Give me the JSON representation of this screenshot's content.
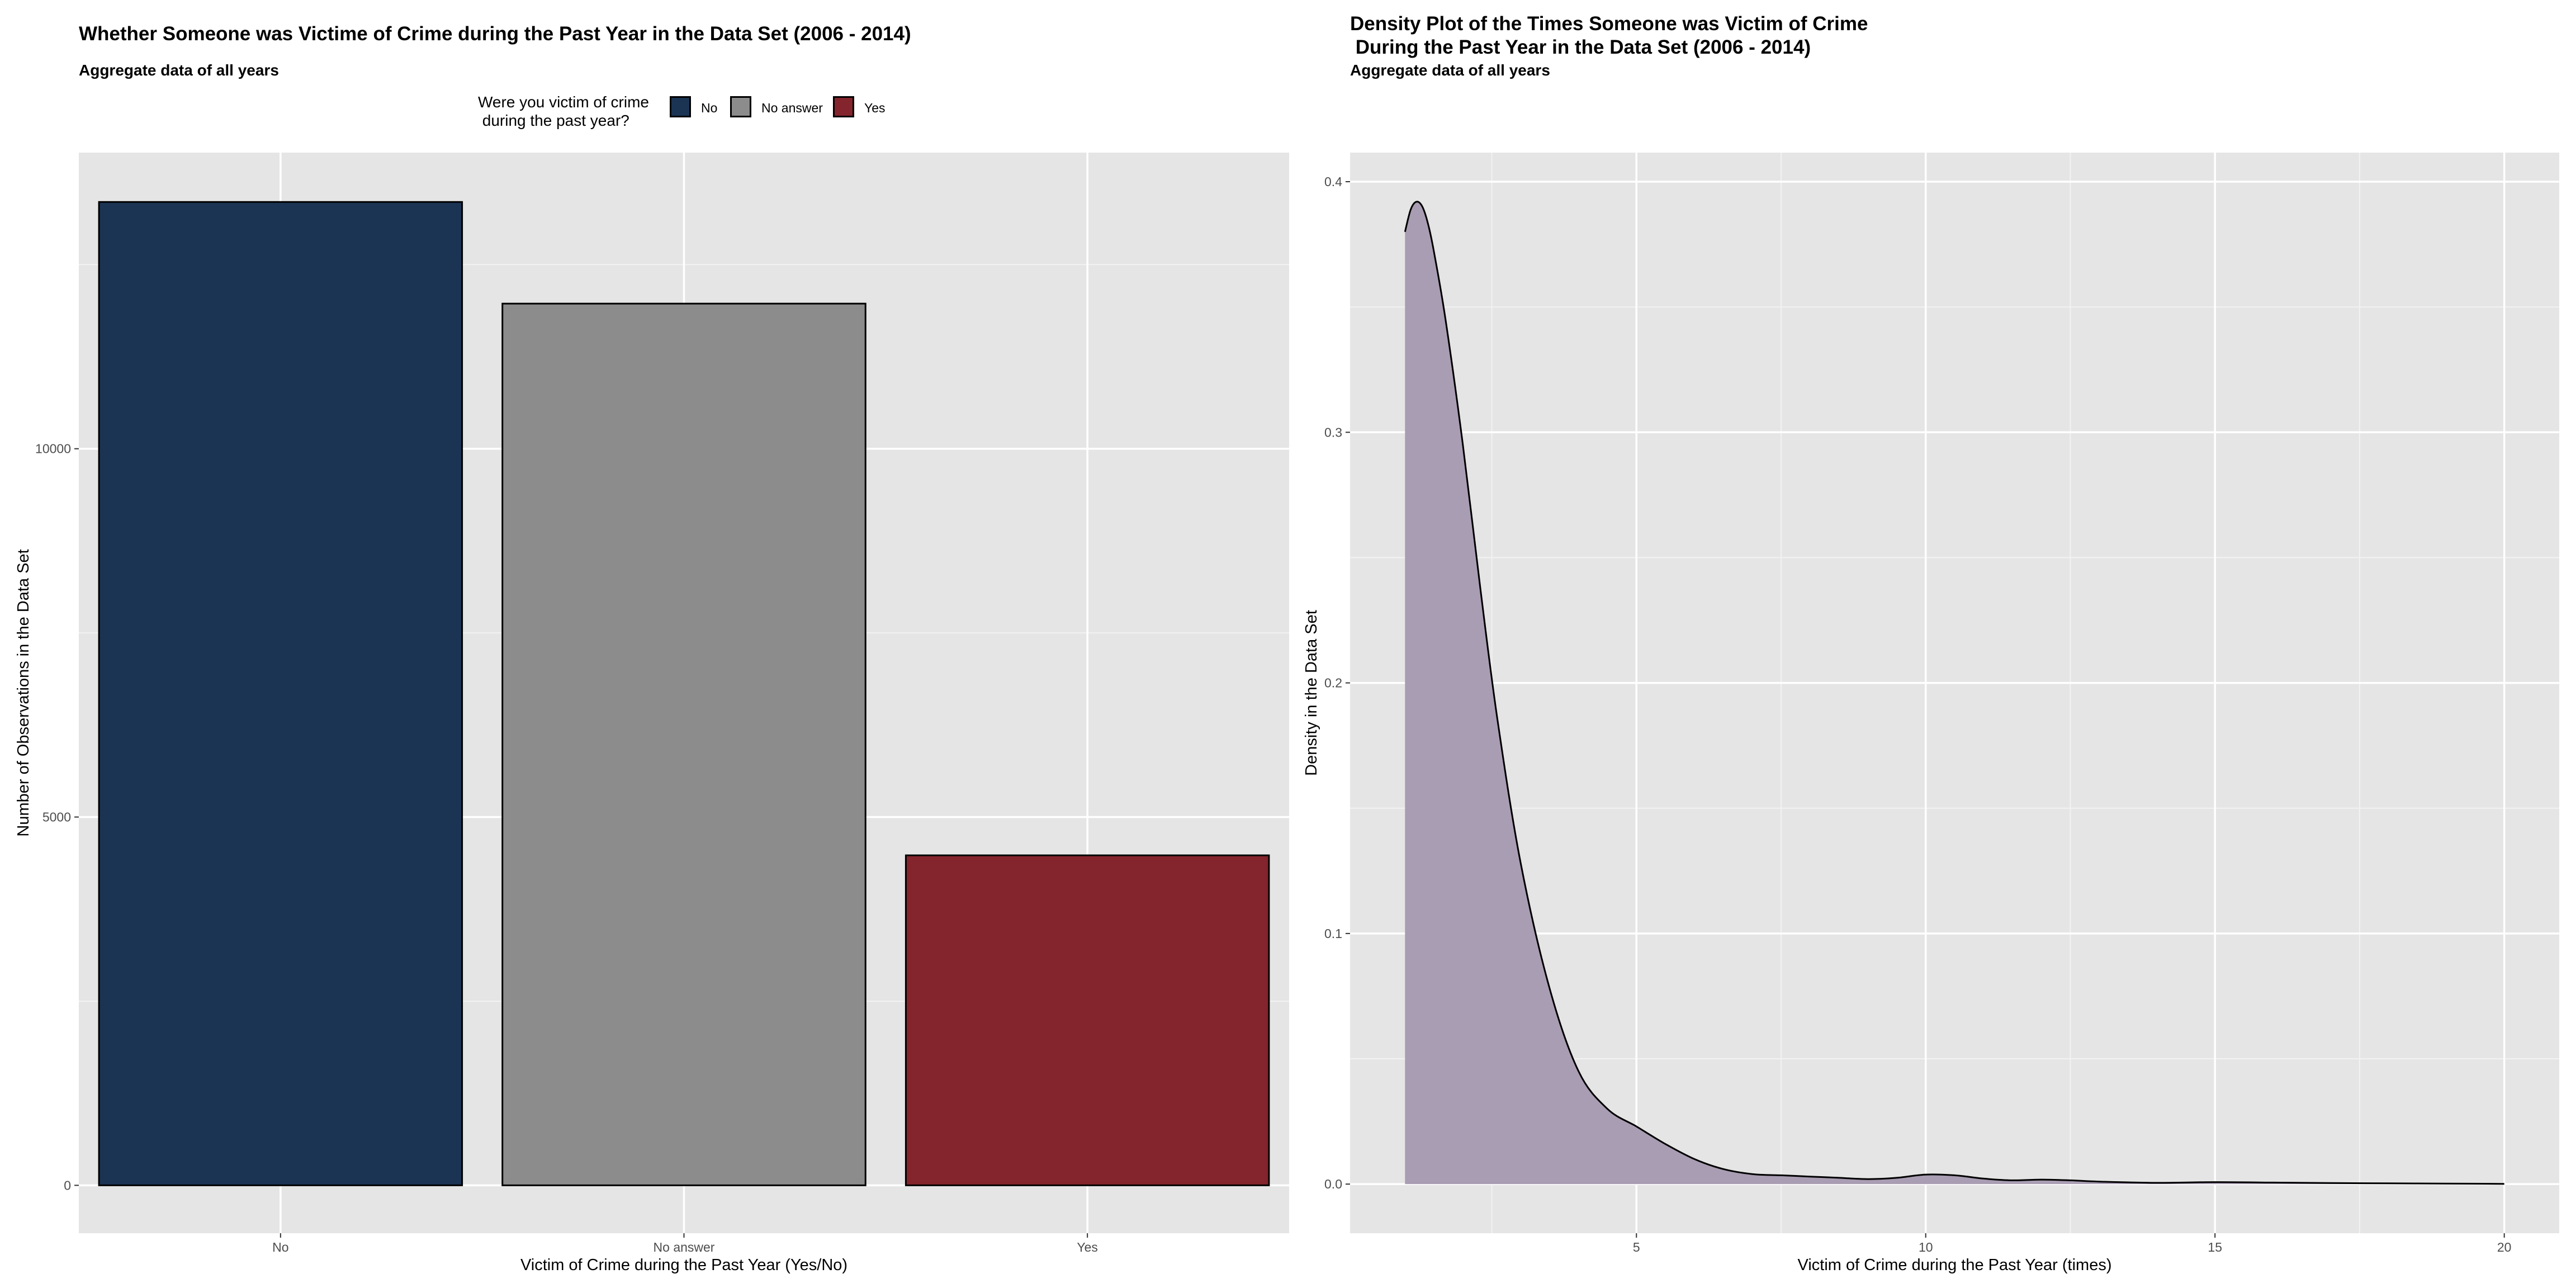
{
  "chart_data": [
    {
      "type": "bar",
      "title": "Whether Someone was Victime of Crime during the Past Year in the Data Set (2006 - 2014)",
      "subtitle": "Aggregate data of all years",
      "xlabel": "Victim of Crime during the Past Year (Yes/No)",
      "ylabel": "Number of Observations in the Data Set",
      "categories": [
        "No",
        "No answer",
        "Yes"
      ],
      "values": [
        13350,
        11970,
        4480
      ],
      "colors": [
        "#1b3454",
        "#8c8c8c",
        "#84242c"
      ],
      "ylim": [
        -650,
        14020
      ],
      "yticks": [
        0,
        5000,
        10000
      ],
      "ytick_labels": [
        "0",
        "5000",
        "10000"
      ],
      "grid": true,
      "legend": {
        "title": "Were you victim of crime\n during the past year?",
        "placement": "top",
        "items": [
          "No",
          "No answer",
          "Yes"
        ]
      }
    },
    {
      "type": "area",
      "title": "Density Plot of the Times Someone was Victim of Crime\n During the Past Year in the Data Set (2006 - 2014)",
      "subtitle": "Aggregate data of all years",
      "xlabel": "Victim of Crime during the Past Year (times)",
      "ylabel": "Density in the Data Set",
      "fill_color": "#a99db3",
      "line_color": "#000000",
      "xlim": [
        0.05,
        20.95
      ],
      "ylim": [
        -0.0196,
        0.4116
      ],
      "xticks": [
        5,
        10,
        15,
        20
      ],
      "xtick_labels": [
        "5",
        "10",
        "15",
        "20"
      ],
      "yticks": [
        0,
        0.1,
        0.2,
        0.3,
        0.4
      ],
      "ytick_labels": [
        "0.0",
        "0.1",
        "0.2",
        "0.3",
        "0.4"
      ],
      "grid": true,
      "x": [
        1.0,
        1.1,
        1.2,
        1.3,
        1.4,
        1.5,
        1.7,
        2.0,
        2.3,
        2.6,
        3.0,
        3.5,
        4.0,
        4.5,
        5.0,
        5.5,
        6.0,
        6.5,
        7.0,
        7.5,
        8.0,
        8.5,
        9.0,
        9.5,
        10.0,
        10.5,
        11.0,
        11.5,
        12.0,
        12.5,
        13.0,
        14.0,
        15.0,
        16.0,
        17.0,
        18.0,
        19.0,
        20.0
      ],
      "y": [
        0.38,
        0.389,
        0.392,
        0.39,
        0.383,
        0.372,
        0.345,
        0.295,
        0.238,
        0.185,
        0.128,
        0.078,
        0.045,
        0.03,
        0.023,
        0.016,
        0.01,
        0.006,
        0.004,
        0.0035,
        0.003,
        0.0025,
        0.002,
        0.0025,
        0.0038,
        0.0035,
        0.0022,
        0.0015,
        0.0018,
        0.0015,
        0.001,
        0.0005,
        0.0008,
        0.0006,
        0.0004,
        0.0003,
        0.0002,
        0.0001
      ]
    }
  ]
}
